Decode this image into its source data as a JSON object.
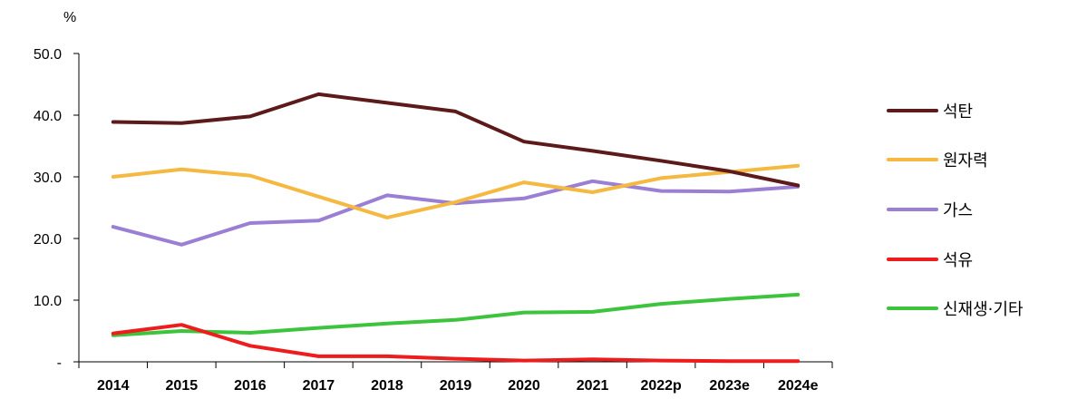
{
  "chart_data": {
    "type": "line",
    "unit_label": "%",
    "categories": [
      "2014",
      "2015",
      "2016",
      "2017",
      "2018",
      "2019",
      "2020",
      "2021",
      "2022p",
      "2023e",
      "2024e"
    ],
    "y_tick_labels": [
      "-",
      "10.0",
      "20.0",
      "30.0",
      "40.0",
      "50.0"
    ],
    "ylim": [
      0,
      50
    ],
    "grid": false,
    "legend_position": "right",
    "series": [
      {
        "name": "석탄",
        "color": "#5c1a1a",
        "values": [
          38.9,
          38.7,
          39.8,
          43.4,
          42.0,
          40.6,
          35.7,
          34.2,
          32.6,
          30.9,
          28.6
        ]
      },
      {
        "name": "원자력",
        "color": "#f5b841",
        "values": [
          30.0,
          31.2,
          30.2,
          26.8,
          23.4,
          25.9,
          29.1,
          27.5,
          29.8,
          30.8,
          31.8
        ]
      },
      {
        "name": "가스",
        "color": "#9b7fd4",
        "values": [
          21.9,
          19.0,
          22.5,
          22.9,
          27.0,
          25.7,
          26.5,
          29.3,
          27.7,
          27.6,
          28.4
        ]
      },
      {
        "name": "석유",
        "color": "#ee1c1c",
        "values": [
          4.6,
          6.0,
          2.6,
          0.9,
          0.9,
          0.5,
          0.2,
          0.4,
          0.2,
          0.1,
          0.1
        ]
      },
      {
        "name": "신재생·기타",
        "color": "#3cc43c",
        "values": [
          4.3,
          5.0,
          4.7,
          5.5,
          6.2,
          6.8,
          8.0,
          8.1,
          9.4,
          10.2,
          10.9
        ]
      }
    ]
  }
}
